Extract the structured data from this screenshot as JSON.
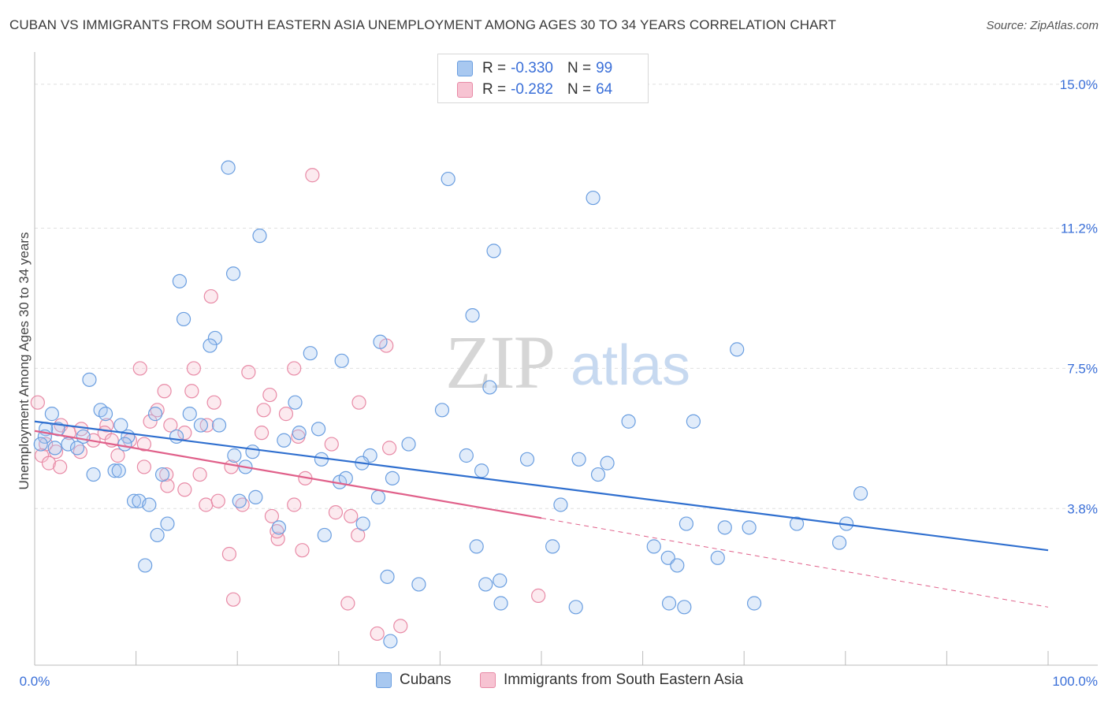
{
  "title": "CUBAN VS IMMIGRANTS FROM SOUTH EASTERN ASIA UNEMPLOYMENT AMONG AGES 30 TO 34 YEARS CORRELATION CHART",
  "source": "Source: ZipAtlas.com",
  "watermark": {
    "zip": "ZIP",
    "atlas": "atlas"
  },
  "legend_stats": [
    {
      "r_label": "R =",
      "r_value": "-0.330",
      "n_label": "N =",
      "n_value": "99",
      "color": "#a8c8f0",
      "border": "#6a9ee0"
    },
    {
      "r_label": "R =",
      "r_value": "-0.282",
      "n_label": "N =",
      "n_value": "64",
      "color": "#f7c3d2",
      "border": "#e88aa6"
    }
  ],
  "legend_bottom": [
    {
      "label": "Cubans",
      "color": "#a8c8f0",
      "border": "#6a9ee0"
    },
    {
      "label": "Immigrants from South Eastern Asia",
      "color": "#f7c3d2",
      "border": "#e88aa6"
    }
  ],
  "colors": {
    "blue_line": "#2f6fcf",
    "pink_line": "#e0608a",
    "blue_fill": "rgba(168,200,240,0.35)",
    "blue_stroke": "#6a9ee0",
    "pink_fill": "rgba(247,195,210,0.35)",
    "pink_stroke": "#e88aa6",
    "grid": "#e0e0e0",
    "tick_label": "#3a6fd8"
  },
  "chart_data": {
    "type": "scatter",
    "title": "CUBAN VS IMMIGRANTS FROM SOUTH EASTERN ASIA UNEMPLOYMENT AMONG AGES 30 TO 34 YEARS CORRELATION CHART",
    "xlabel": "",
    "ylabel": "Unemployment Among Ages 30 to 34 years",
    "xlim": [
      0,
      100
    ],
    "ylim": [
      0,
      15.6
    ],
    "x_tick_labels": [
      "0.0%",
      "100.0%"
    ],
    "y_ticks": [
      3.8,
      7.5,
      11.2,
      15.0
    ],
    "y_tick_labels": [
      "3.8%",
      "7.5%",
      "11.2%",
      "15.0%"
    ],
    "grid": true,
    "series": [
      {
        "name": "Cubans",
        "r": -0.33,
        "n": 99,
        "trend": {
          "x0": 0,
          "y0": 6.1,
          "x1": 100,
          "y1": 2.7
        },
        "points": [
          [
            19.1,
            12.8
          ],
          [
            22.2,
            11.0
          ],
          [
            55.1,
            12.0
          ],
          [
            45.3,
            10.6
          ],
          [
            14.3,
            9.8
          ],
          [
            19.6,
            10.0
          ],
          [
            14.7,
            8.8
          ],
          [
            17.8,
            8.3
          ],
          [
            17.3,
            8.1
          ],
          [
            43.2,
            8.9
          ],
          [
            27.2,
            7.9
          ],
          [
            30.3,
            7.7
          ],
          [
            34.1,
            8.2
          ],
          [
            69.3,
            8.0
          ],
          [
            5.4,
            7.2
          ],
          [
            44.9,
            7.0
          ],
          [
            25.7,
            6.6
          ],
          [
            40.2,
            6.4
          ],
          [
            6.5,
            6.4
          ],
          [
            1.7,
            6.3
          ],
          [
            7.0,
            6.3
          ],
          [
            11.9,
            6.3
          ],
          [
            15.3,
            6.3
          ],
          [
            2.3,
            5.9
          ],
          [
            1.1,
            5.9
          ],
          [
            8.5,
            6.0
          ],
          [
            16.4,
            6.0
          ],
          [
            18.2,
            6.0
          ],
          [
            28.0,
            5.9
          ],
          [
            58.6,
            6.1
          ],
          [
            65.0,
            6.1
          ],
          [
            1.0,
            5.7
          ],
          [
            4.8,
            5.7
          ],
          [
            9.2,
            5.7
          ],
          [
            14.0,
            5.7
          ],
          [
            26.1,
            5.8
          ],
          [
            0.6,
            5.5
          ],
          [
            2.0,
            5.4
          ],
          [
            3.3,
            5.5
          ],
          [
            4.2,
            5.4
          ],
          [
            8.9,
            5.5
          ],
          [
            24.6,
            5.6
          ],
          [
            36.9,
            5.5
          ],
          [
            19.7,
            5.2
          ],
          [
            21.5,
            5.3
          ],
          [
            28.3,
            5.1
          ],
          [
            33.1,
            5.2
          ],
          [
            42.6,
            5.2
          ],
          [
            48.6,
            5.1
          ],
          [
            53.7,
            5.1
          ],
          [
            56.5,
            5.0
          ],
          [
            20.8,
            4.9
          ],
          [
            32.3,
            5.0
          ],
          [
            5.8,
            4.7
          ],
          [
            7.9,
            4.8
          ],
          [
            8.3,
            4.8
          ],
          [
            12.6,
            4.7
          ],
          [
            30.1,
            4.5
          ],
          [
            30.7,
            4.6
          ],
          [
            35.3,
            4.6
          ],
          [
            44.1,
            4.8
          ],
          [
            55.6,
            4.7
          ],
          [
            9.8,
            4.0
          ],
          [
            10.3,
            4.0
          ],
          [
            11.3,
            3.9
          ],
          [
            20.2,
            4.0
          ],
          [
            21.8,
            4.1
          ],
          [
            33.9,
            4.1
          ],
          [
            51.9,
            3.9
          ],
          [
            81.5,
            4.2
          ],
          [
            13.1,
            3.4
          ],
          [
            24.1,
            3.3
          ],
          [
            32.4,
            3.4
          ],
          [
            64.3,
            3.4
          ],
          [
            68.1,
            3.3
          ],
          [
            70.5,
            3.3
          ],
          [
            75.2,
            3.4
          ],
          [
            80.1,
            3.4
          ],
          [
            12.1,
            3.1
          ],
          [
            28.6,
            3.1
          ],
          [
            79.4,
            2.9
          ],
          [
            43.6,
            2.8
          ],
          [
            51.1,
            2.8
          ],
          [
            61.1,
            2.8
          ],
          [
            62.5,
            2.5
          ],
          [
            63.4,
            2.3
          ],
          [
            67.4,
            2.5
          ],
          [
            10.9,
            2.3
          ],
          [
            34.8,
            2.0
          ],
          [
            37.9,
            1.8
          ],
          [
            44.5,
            1.8
          ],
          [
            45.9,
            1.9
          ],
          [
            46.0,
            1.3
          ],
          [
            53.4,
            1.2
          ],
          [
            62.6,
            1.3
          ],
          [
            64.1,
            1.2
          ],
          [
            71.0,
            1.3
          ],
          [
            35.1,
            0.3
          ],
          [
            40.8,
            12.5
          ]
        ]
      },
      {
        "name": "Immigrants from South Eastern Asia",
        "r": -0.282,
        "n": 64,
        "trend": {
          "x0": 0,
          "y0": 5.85,
          "x1": 50,
          "y1": 3.55,
          "dash_to_x": 100,
          "dash_to_y": 1.2
        },
        "points": [
          [
            27.4,
            12.6
          ],
          [
            17.4,
            9.4
          ],
          [
            34.7,
            8.1
          ],
          [
            10.4,
            7.5
          ],
          [
            15.7,
            7.5
          ],
          [
            21.1,
            7.4
          ],
          [
            25.6,
            7.5
          ],
          [
            12.8,
            6.9
          ],
          [
            15.5,
            6.9
          ],
          [
            23.2,
            6.8
          ],
          [
            0.3,
            6.6
          ],
          [
            17.7,
            6.6
          ],
          [
            32.0,
            6.6
          ],
          [
            12.1,
            6.4
          ],
          [
            22.6,
            6.4
          ],
          [
            24.8,
            6.3
          ],
          [
            2.6,
            6.0
          ],
          [
            7.1,
            6.0
          ],
          [
            11.4,
            6.1
          ],
          [
            13.4,
            6.0
          ],
          [
            17.0,
            6.0
          ],
          [
            3.4,
            5.8
          ],
          [
            4.6,
            5.9
          ],
          [
            6.9,
            5.8
          ],
          [
            14.8,
            5.8
          ],
          [
            22.4,
            5.8
          ],
          [
            26.0,
            5.7
          ],
          [
            5.8,
            5.6
          ],
          [
            7.6,
            5.6
          ],
          [
            9.4,
            5.6
          ],
          [
            1.1,
            5.5
          ],
          [
            2.1,
            5.3
          ],
          [
            10.8,
            5.5
          ],
          [
            29.3,
            5.5
          ],
          [
            0.7,
            5.2
          ],
          [
            4.5,
            5.3
          ],
          [
            35.0,
            5.4
          ],
          [
            1.4,
            5.0
          ],
          [
            2.5,
            4.9
          ],
          [
            10.8,
            4.9
          ],
          [
            19.4,
            4.9
          ],
          [
            13.0,
            4.7
          ],
          [
            16.3,
            4.7
          ],
          [
            26.7,
            4.6
          ],
          [
            13.1,
            4.4
          ],
          [
            14.8,
            4.3
          ],
          [
            20.5,
            3.9
          ],
          [
            16.9,
            3.9
          ],
          [
            25.6,
            3.9
          ],
          [
            29.7,
            3.7
          ],
          [
            23.4,
            3.6
          ],
          [
            31.2,
            3.6
          ],
          [
            24.0,
            3.0
          ],
          [
            31.9,
            3.1
          ],
          [
            26.4,
            2.7
          ],
          [
            19.2,
            2.6
          ],
          [
            19.6,
            1.4
          ],
          [
            30.9,
            1.3
          ],
          [
            49.7,
            1.5
          ],
          [
            33.8,
            0.5
          ],
          [
            36.1,
            0.7
          ],
          [
            23.9,
            3.2
          ],
          [
            18.1,
            4.0
          ],
          [
            8.2,
            5.2
          ]
        ]
      }
    ]
  }
}
